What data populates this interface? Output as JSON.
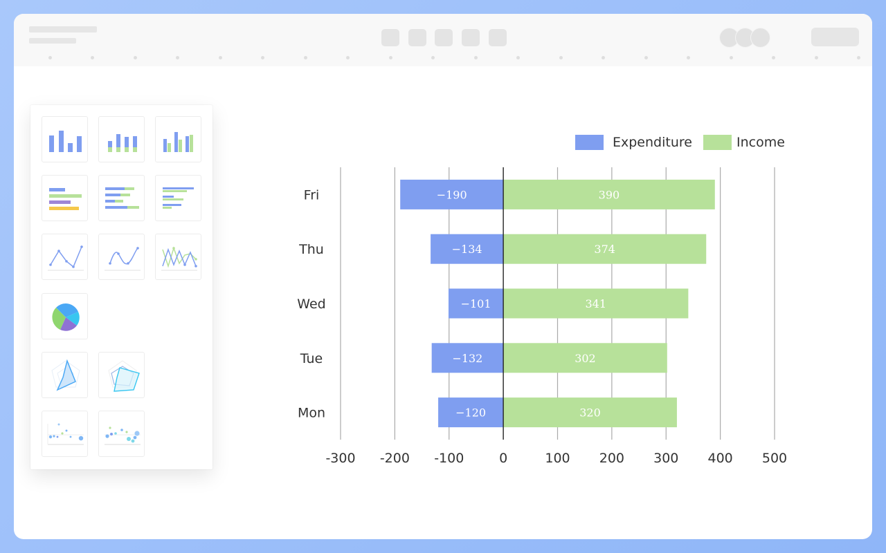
{
  "colors": {
    "expenditure": "#7f9ef0",
    "income": "#b7e19a",
    "grid": "#aaaaaa",
    "zero_line": "#222222",
    "axis_text": "#333333",
    "bar_label": "#ffffff"
  },
  "palette_icons": [
    "vertical-bar-chart-icon",
    "grouped-bar-chart-icon",
    "stacked-bar-chart-icon",
    "horizontal-bar-chart-icon",
    "horizontal-grouped-bar-chart-icon",
    "horizontal-stacked-bar-chart-icon",
    "line-chart-icon",
    "smooth-line-chart-icon",
    "multi-line-chart-icon",
    "pie-chart-icon",
    "radar-chart-icon",
    "multi-radar-chart-icon",
    "scatter-chart-icon",
    "bubble-chart-icon"
  ],
  "chart_data": {
    "type": "bar",
    "orientation": "horizontal",
    "categories": [
      "Mon",
      "Tue",
      "Wed",
      "Thu",
      "Fri"
    ],
    "series": [
      {
        "name": "Expenditure",
        "values": [
          -120,
          -132,
          -101,
          -134,
          -190
        ]
      },
      {
        "name": "Income",
        "values": [
          320,
          302,
          341,
          374,
          390
        ]
      }
    ],
    "xlim": [
      -300,
      500
    ],
    "xticks": [
      "-300",
      "-200",
      "-100",
      "0",
      "100",
      "200",
      "300",
      "400",
      "500"
    ],
    "grid": true,
    "legend": "top-right",
    "data_labels": true
  }
}
